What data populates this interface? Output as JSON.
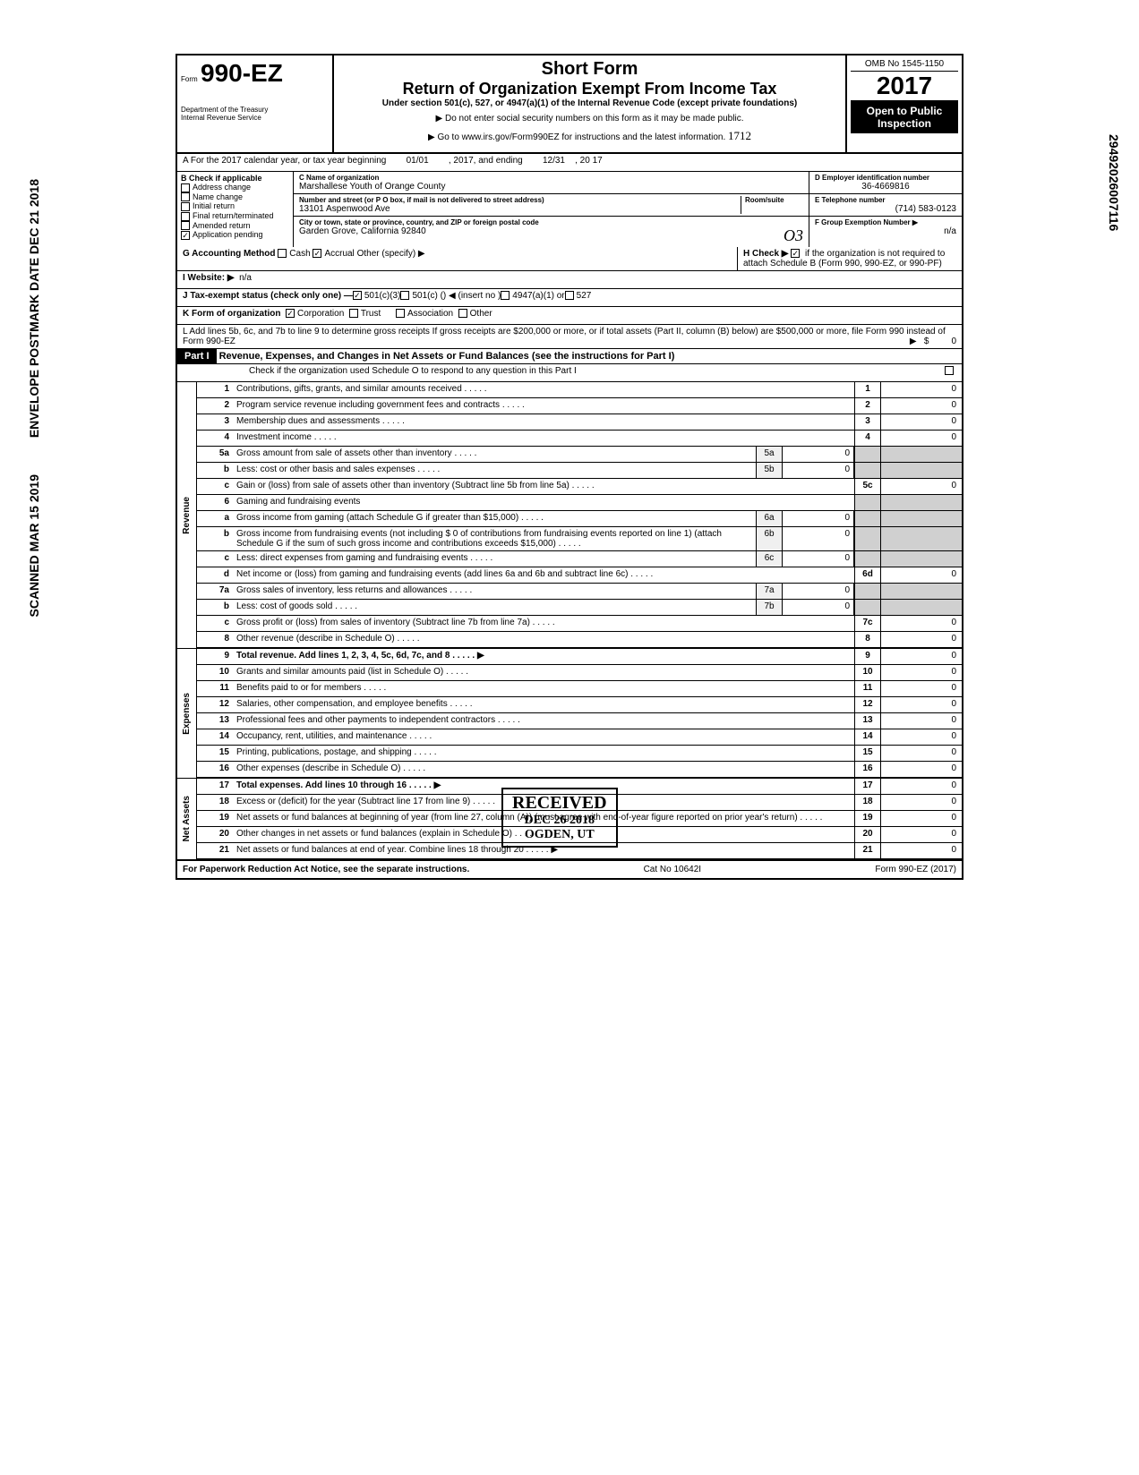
{
  "form": {
    "number": "990-EZ",
    "prefix": "Form",
    "shortForm": "Short Form",
    "title": "Return of Organization Exempt From Income Tax",
    "underSection": "Under section 501(c), 527, or 4947(a)(1) of the Internal Revenue Code (except private foundations)",
    "ssn_warning": "▶ Do not enter social security numbers on this form as it may be made public.",
    "goto": "▶ Go to www.irs.gov/Form990EZ for instructions and the latest information.",
    "dept": "Department of the Treasury",
    "irs": "Internal Revenue Service",
    "omb": "OMB No 1545-1150",
    "year": "2017",
    "openPublic": "Open to Public Inspection",
    "handwritten_code": "1712"
  },
  "lineA": {
    "label": "A For the 2017 calendar year, or tax year beginning",
    "start": "01/01",
    "mid": ", 2017, and ending",
    "end": "12/31",
    "yearEnd": ", 20   17"
  },
  "sectionB": {
    "label": "B Check if applicable",
    "address_change": "Address change",
    "name_change": "Name change",
    "initial_return": "Initial return",
    "final_return": "Final return/terminated",
    "amended_return": "Amended return",
    "application_pending": "Application pending"
  },
  "sectionC": {
    "name_label": "C Name of organization",
    "name": "Marshallese Youth of Orange County",
    "street_label": "Number and street (or P O box, if mail is not delivered to street address)",
    "street": "13101 Aspenwood Ave",
    "room_label": "Room/suite",
    "city_label": "City or town, state or province, country, and ZIP or foreign postal code",
    "city": "Garden Grove, California 92840",
    "handwritten": "O3"
  },
  "sectionD": {
    "label": "D Employer identification number",
    "ein": "36-4669816"
  },
  "sectionE": {
    "label": "E Telephone number",
    "phone": "(714) 583-0123"
  },
  "sectionF": {
    "label": "F Group Exemption Number ▶",
    "value": "n/a"
  },
  "sectionG": {
    "label": "G Accounting Method",
    "cash": "Cash",
    "accrual": "Accrual",
    "other": "Other (specify) ▶"
  },
  "sectionH": {
    "label": "H Check ▶",
    "text": "if the organization is not required to attach Schedule B (Form 990, 990-EZ, or 990-PF)"
  },
  "sectionI": {
    "label": "I Website: ▶",
    "value": "n/a"
  },
  "sectionJ": {
    "label": "J Tax-exempt status (check only one) —",
    "opt1": "501(c)(3)",
    "opt2": "501(c) (",
    "insert": ") ◀ (insert no )",
    "opt3": "4947(a)(1) or",
    "opt4": "527"
  },
  "sectionK": {
    "label": "K Form of organization",
    "corp": "Corporation",
    "trust": "Trust",
    "assoc": "Association",
    "other": "Other"
  },
  "sectionL": {
    "text": "L Add lines 5b, 6c, and 7b to line 9 to determine gross receipts If gross receipts are $200,000 or more, or if total assets (Part II, column (B) below) are $500,000 or more, file Form 990 instead of Form 990-EZ",
    "arrow": "▶",
    "dollar": "$",
    "value": "0"
  },
  "part1": {
    "header": "Part I",
    "title": "Revenue, Expenses, and Changes in Net Assets or Fund Balances (see the instructions for Part I)",
    "checkLine": "Check if the organization used Schedule O to respond to any question in this Part I"
  },
  "sideLabels": {
    "revenue": "Revenue",
    "expenses": "Expenses",
    "netAssets": "Net Assets"
  },
  "lines": [
    {
      "num": "1",
      "desc": "Contributions, gifts, grants, and similar amounts received",
      "end": "1",
      "val": "0"
    },
    {
      "num": "2",
      "desc": "Program service revenue including government fees and contracts",
      "end": "2",
      "val": "0"
    },
    {
      "num": "3",
      "desc": "Membership dues and assessments",
      "end": "3",
      "val": "0"
    },
    {
      "num": "4",
      "desc": "Investment income",
      "end": "4",
      "val": "0"
    },
    {
      "num": "5a",
      "desc": "Gross amount from sale of assets other than inventory",
      "mid": "5a",
      "midval": "0"
    },
    {
      "num": "b",
      "desc": "Less: cost or other basis and sales expenses",
      "mid": "5b",
      "midval": "0"
    },
    {
      "num": "c",
      "desc": "Gain or (loss) from sale of assets other than inventory (Subtract line 5b from line 5a)",
      "end": "5c",
      "val": "0"
    },
    {
      "num": "6",
      "desc": "Gaming and fundraising events"
    },
    {
      "num": "a",
      "desc": "Gross income from gaming (attach Schedule G if greater than $15,000)",
      "mid": "6a",
      "midval": "0"
    },
    {
      "num": "b",
      "desc": "Gross income from fundraising events (not including $           0 of contributions from fundraising events reported on line 1) (attach Schedule G if the sum of such gross income and contributions exceeds $15,000)",
      "mid": "6b",
      "midval": "0"
    },
    {
      "num": "c",
      "desc": "Less: direct expenses from gaming and fundraising events",
      "mid": "6c",
      "midval": "0"
    },
    {
      "num": "d",
      "desc": "Net income or (loss) from gaming and fundraising events (add lines 6a and 6b and subtract line 6c)",
      "end": "6d",
      "val": "0"
    },
    {
      "num": "7a",
      "desc": "Gross sales of inventory, less returns and allowances",
      "mid": "7a",
      "midval": "0"
    },
    {
      "num": "b",
      "desc": "Less: cost of goods sold",
      "mid": "7b",
      "midval": "0"
    },
    {
      "num": "c",
      "desc": "Gross profit or (loss) from sales of inventory (Subtract line 7b from line 7a)",
      "end": "7c",
      "val": "0"
    },
    {
      "num": "8",
      "desc": "Other revenue (describe in Schedule O)",
      "end": "8",
      "val": "0"
    },
    {
      "num": "9",
      "desc": "Total revenue. Add lines 1, 2, 3, 4, 5c, 6d, 7c, and 8",
      "end": "9",
      "val": "0",
      "bold": true,
      "arrow": true
    },
    {
      "num": "10",
      "desc": "Grants and similar amounts paid (list in Schedule O)",
      "end": "10",
      "val": "0"
    },
    {
      "num": "11",
      "desc": "Benefits paid to or for members",
      "end": "11",
      "val": "0"
    },
    {
      "num": "12",
      "desc": "Salaries, other compensation, and employee benefits",
      "end": "12",
      "val": "0"
    },
    {
      "num": "13",
      "desc": "Professional fees and other payments to independent contractors",
      "end": "13",
      "val": "0"
    },
    {
      "num": "14",
      "desc": "Occupancy, rent, utilities, and maintenance",
      "end": "14",
      "val": "0"
    },
    {
      "num": "15",
      "desc": "Printing, publications, postage, and shipping",
      "end": "15",
      "val": "0"
    },
    {
      "num": "16",
      "desc": "Other expenses (describe in Schedule O)",
      "end": "16",
      "val": "0"
    },
    {
      "num": "17",
      "desc": "Total expenses. Add lines 10 through 16",
      "end": "17",
      "val": "0",
      "bold": true,
      "arrow": true
    },
    {
      "num": "18",
      "desc": "Excess or (deficit) for the year (Subtract line 17 from line 9)",
      "end": "18",
      "val": "0"
    },
    {
      "num": "19",
      "desc": "Net assets or fund balances at beginning of year (from line 27, column (A)) (must agree with end-of-year figure reported on prior year's return)",
      "end": "19",
      "val": "0"
    },
    {
      "num": "20",
      "desc": "Other changes in net assets or fund balances (explain in Schedule O)",
      "end": "20",
      "val": "0"
    },
    {
      "num": "21",
      "desc": "Net assets or fund balances at end of year. Combine lines 18 through 20",
      "end": "21",
      "val": "0",
      "arrow": true
    }
  ],
  "footer": {
    "paperwork": "For Paperwork Reduction Act Notice, see the separate instructions.",
    "catNo": "Cat No 10642I",
    "formRef": "Form 990-EZ (2017)"
  },
  "stamps": {
    "received": "RECEIVED",
    "date": "DEC 26 2018",
    "ogden": "OGDEN, UT",
    "scanned": "SCANNED MAR 15 2019",
    "postmark": "ENVELOPE POSTMARK DATE DEC 21 2018",
    "sideNumber": "29492026007116"
  }
}
